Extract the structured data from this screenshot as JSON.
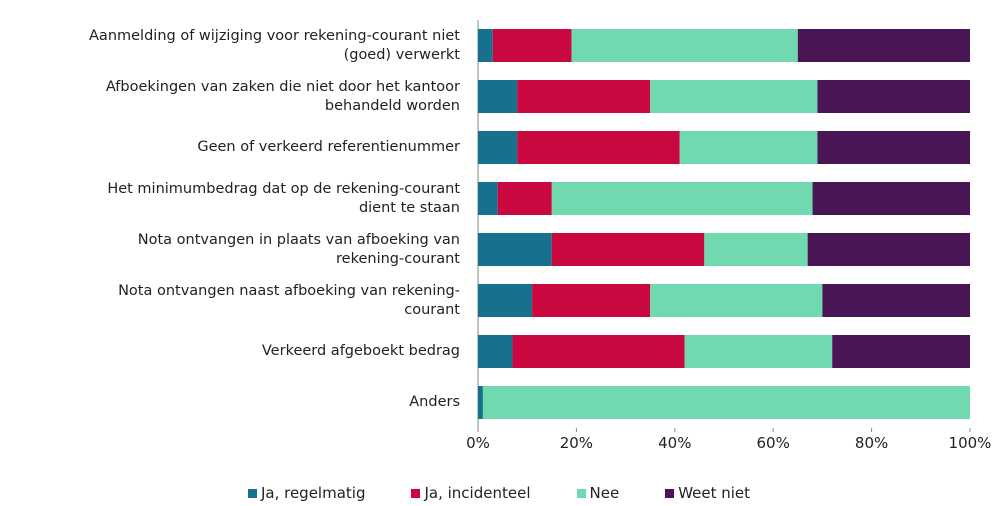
{
  "chart_data": {
    "type": "bar",
    "orientation": "horizontal",
    "stacked": true,
    "categories": [
      "Aanmelding of wijziging voor rekening-courant niet\n(goed) verwerkt",
      "Afboekingen van zaken die niet door het kantoor\nbehandeld worden",
      "Geen of verkeerd referentienummer",
      "Het minimumbedrag dat op de rekening-courant\ndient te staan",
      "Nota ontvangen in plaats van afboeking van\nrekening-courant",
      "Nota ontvangen naast afboeking van rekening-\ncourant",
      "Verkeerd afgeboekt bedrag",
      "Anders"
    ],
    "series": [
      {
        "name": "Ja, regelmatig",
        "color": "#18708f",
        "values": [
          3,
          8,
          8,
          4,
          15,
          11,
          7,
          1
        ]
      },
      {
        "name": "Ja, incidenteel",
        "color": "#c8083f",
        "values": [
          16,
          27,
          33,
          11,
          31,
          24,
          35,
          0
        ]
      },
      {
        "name": "Nee",
        "color": "#70d9b0",
        "values": [
          46,
          34,
          28,
          53,
          21,
          35,
          30,
          99
        ]
      },
      {
        "name": "Weet niet",
        "color": "#4a1555",
        "values": [
          35,
          31,
          31,
          32,
          33,
          30,
          28,
          0
        ]
      }
    ],
    "xlim": [
      0,
      100
    ],
    "xticks": [
      {
        "value": 0,
        "label": "0%"
      },
      {
        "value": 20,
        "label": "20%"
      },
      {
        "value": 40,
        "label": "40%"
      },
      {
        "value": 60,
        "label": "60%"
      },
      {
        "value": 80,
        "label": "80%"
      },
      {
        "value": 100,
        "label": "100%"
      }
    ],
    "legend": "bottom"
  }
}
